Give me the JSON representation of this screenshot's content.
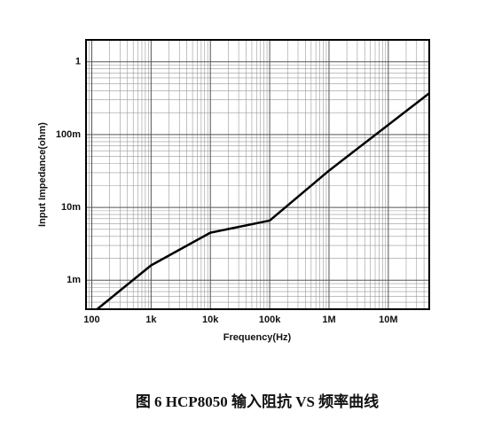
{
  "chart_data": {
    "type": "line",
    "title": "图 6 HCP8050 输入阻抗 VS 频率曲线",
    "x_label": "Frequency(Hz)",
    "y_label": "Input Impedance(ohm)",
    "x_scale": "log",
    "y_scale": "log",
    "grid": true,
    "minor_grid": true,
    "xlim": [
      80,
      49000000
    ],
    "ylim": [
      0.0004,
      2
    ],
    "xticks": [
      100,
      {
        "value": 1000,
        "label": "1k"
      },
      {
        "value": 10000,
        "label": "10k"
      },
      {
        "value": 100000,
        "label": "100k"
      },
      {
        "value": 1000000,
        "label": "1M"
      },
      {
        "value": 10000000,
        "label": "10M"
      }
    ],
    "yticks": [
      {
        "value": 0.001,
        "label": "1m"
      },
      {
        "value": 0.01,
        "label": "10m"
      },
      {
        "value": 0.1,
        "label": "100m"
      },
      1
    ],
    "series": [
      {
        "color": "#000000",
        "x": [
          123,
          1000,
          10000,
          100000,
          1000000,
          49000000
        ],
        "values": [
          0.0004,
          0.0016,
          0.0045,
          0.0066,
          0.032,
          0.37
        ]
      }
    ]
  }
}
